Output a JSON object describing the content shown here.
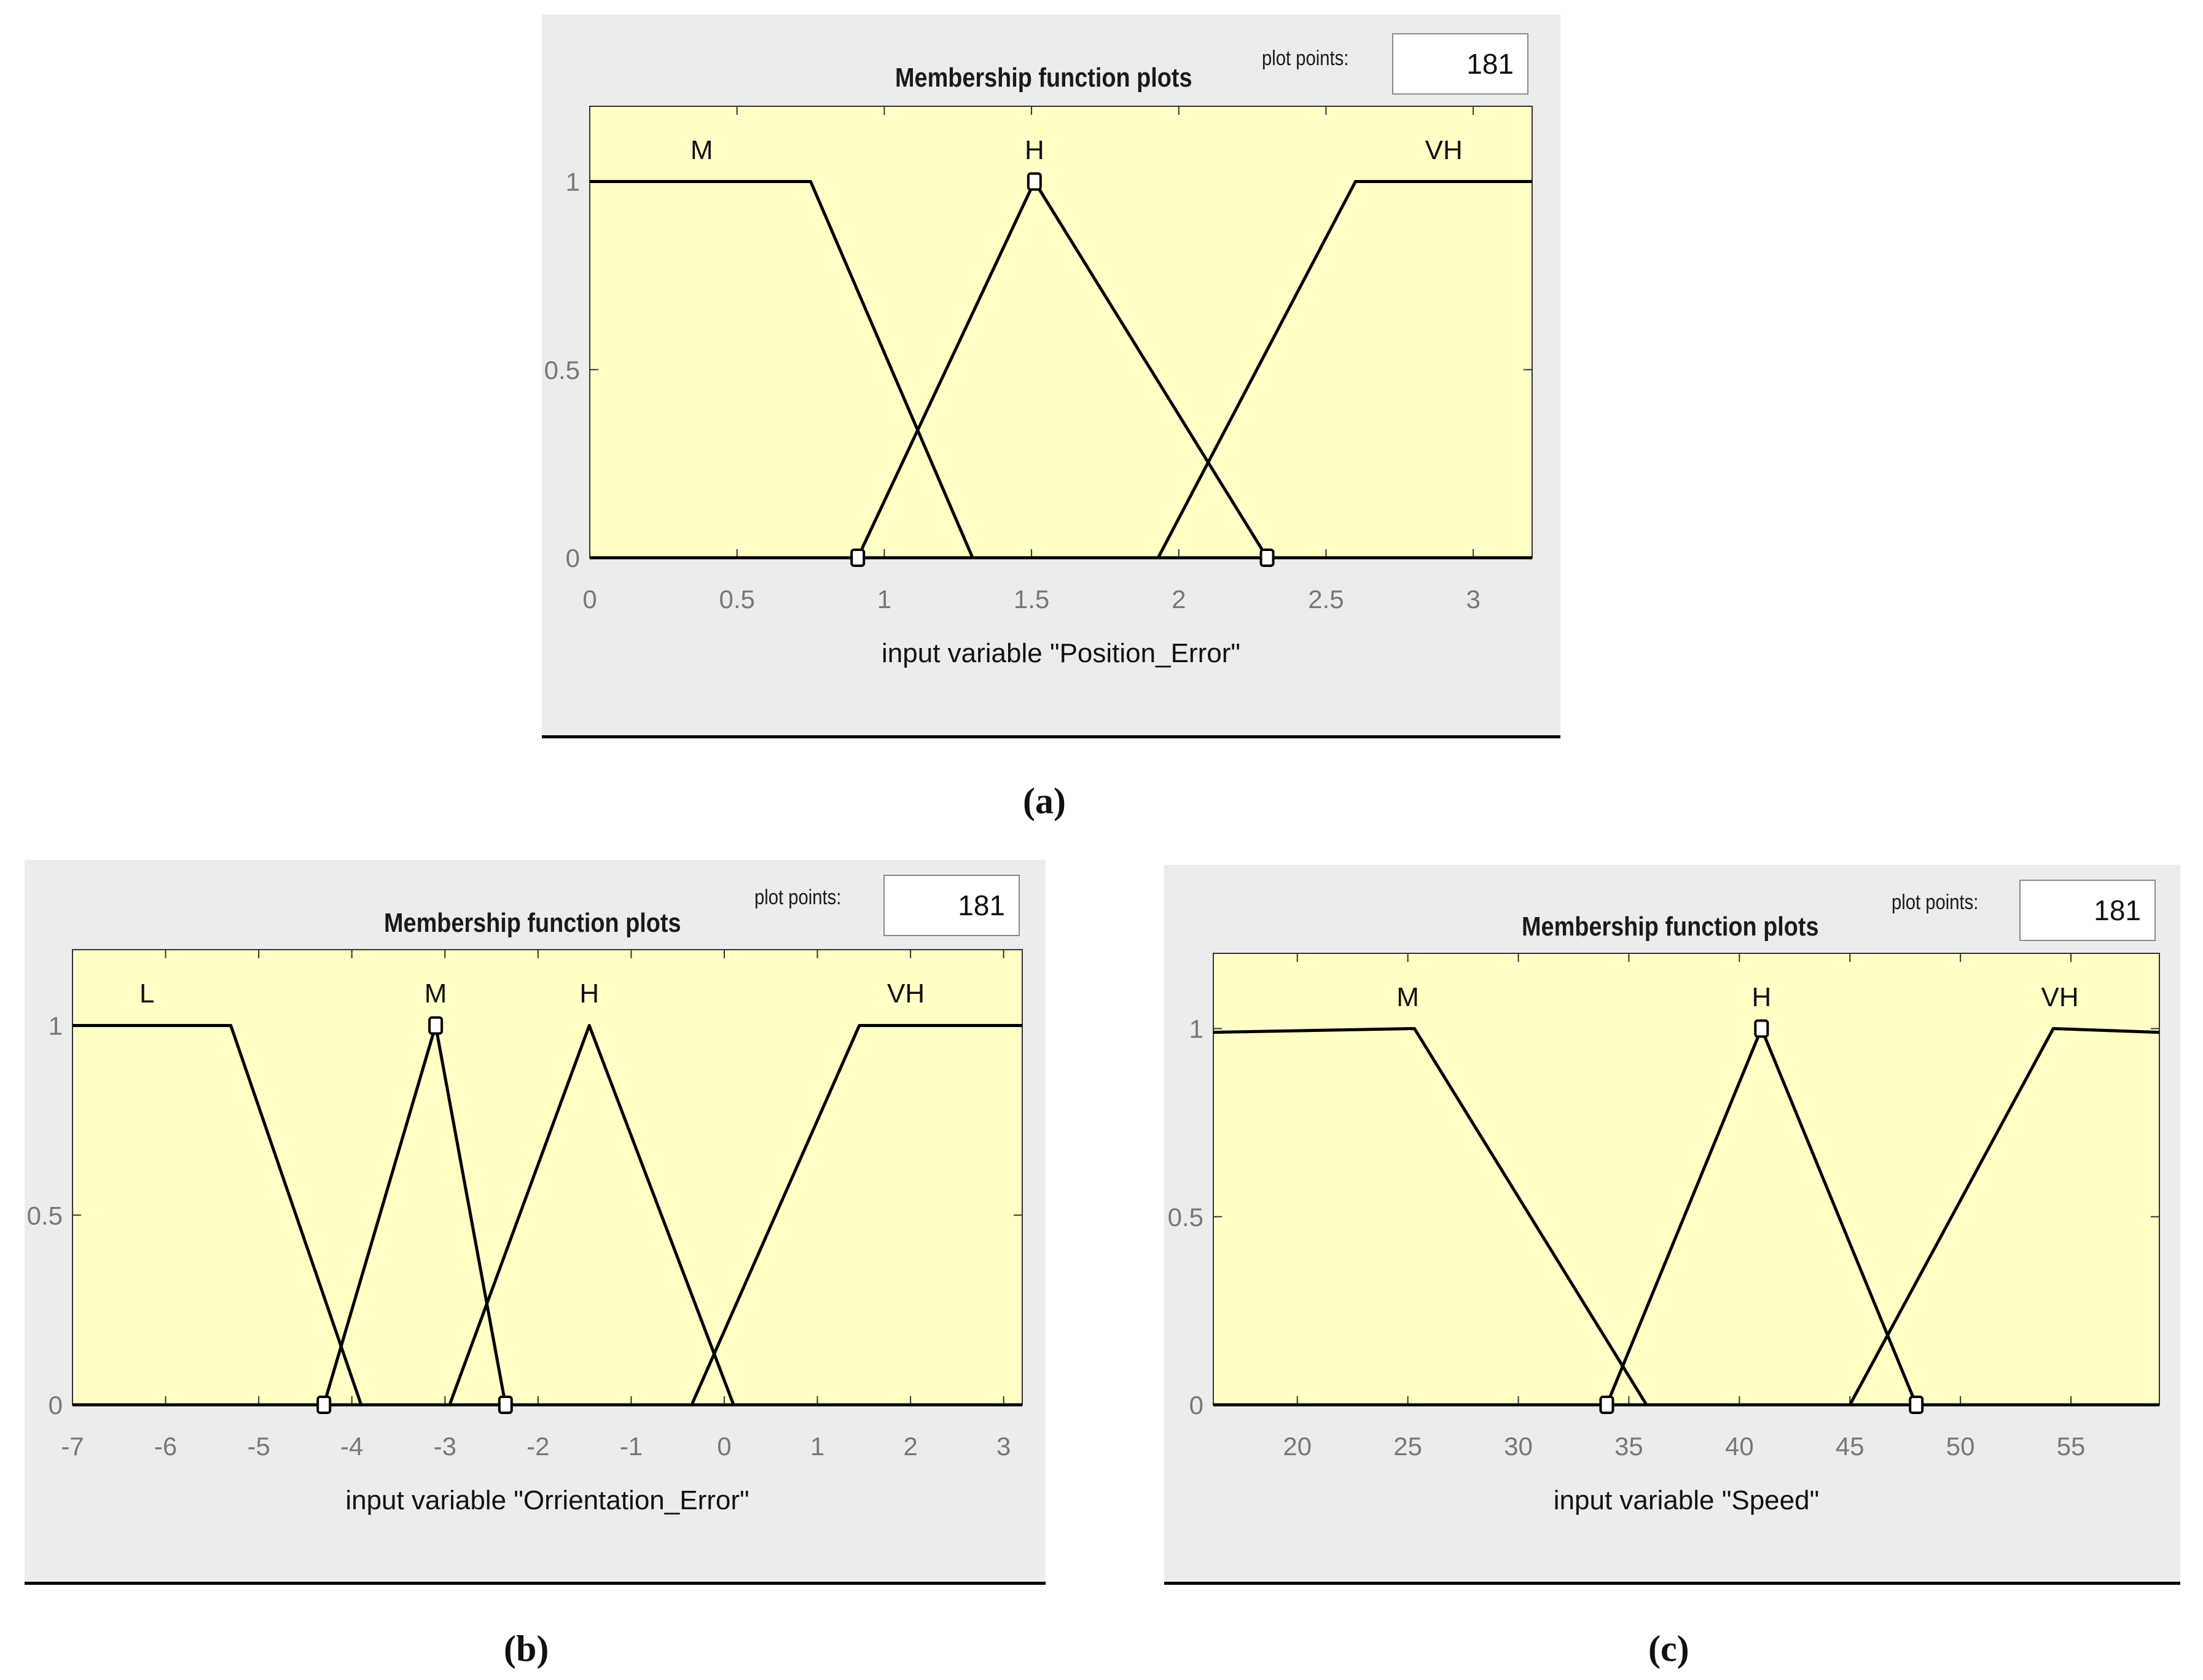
{
  "charts": [
    {
      "id": "a",
      "title": "Membership function plots",
      "plot_points_label": "plot points:",
      "plot_points_value": "181",
      "caption": "(a)"
    },
    {
      "id": "b",
      "title": "Membership function plots",
      "plot_points_label": "plot points:",
      "plot_points_value": "181",
      "caption": "(b)"
    },
    {
      "id": "c",
      "title": "Membership function plots",
      "plot_points_label": "plot points:",
      "plot_points_value": "181",
      "caption": "(c)"
    }
  ],
  "colors": {
    "plot_bg": "#ffffc6",
    "panel_bg": "#ececec",
    "line": "#000000",
    "tick_label": "#777777"
  },
  "chart_data": [
    {
      "type": "line",
      "xlabel": "input variable \"Position_Error\"",
      "xlim": [
        0,
        3.2
      ],
      "ylim": [
        0,
        1.2
      ],
      "xticks": [
        0,
        0.5,
        1,
        1.5,
        2,
        2.5,
        3
      ],
      "xtick_labels": [
        "0",
        "0.5",
        "1",
        "1.5",
        "2",
        "2.5",
        "3"
      ],
      "yticks": [
        0,
        0.5,
        1
      ],
      "ytick_labels": [
        "0",
        "0.5",
        "1"
      ],
      "series": [
        {
          "name": "M",
          "points": [
            [
              0,
              1
            ],
            [
              0.75,
              1
            ],
            [
              1.3,
              0
            ]
          ],
          "label_x": 0.38,
          "markers": []
        },
        {
          "name": "H",
          "points": [
            [
              0.91,
              0
            ],
            [
              1.51,
              1
            ],
            [
              2.3,
              0
            ]
          ],
          "label_x": 1.51,
          "markers": [
            [
              0.91,
              0
            ],
            [
              1.51,
              1
            ],
            [
              2.3,
              0
            ]
          ]
        },
        {
          "name": "VH",
          "points": [
            [
              1.93,
              0
            ],
            [
              2.6,
              1
            ],
            [
              3.2,
              1
            ]
          ],
          "label_x": 2.9,
          "markers": []
        }
      ]
    },
    {
      "type": "line",
      "xlabel": "input variable \"Orrientation_Error\"",
      "xlim": [
        -7,
        3.2
      ],
      "ylim": [
        0,
        1.2
      ],
      "xticks": [
        -7,
        -6,
        -5,
        -4,
        -3,
        -2,
        -1,
        0,
        1,
        2,
        3
      ],
      "xtick_labels": [
        "-7",
        "-6",
        "-5",
        "-4",
        "-3",
        "-2",
        "-1",
        "0",
        "1",
        "2",
        "3"
      ],
      "yticks": [
        0,
        0.5,
        1
      ],
      "ytick_labels": [
        "0",
        "0.5",
        "1"
      ],
      "series": [
        {
          "name": "L",
          "points": [
            [
              -7,
              1
            ],
            [
              -5.3,
              1
            ],
            [
              -3.9,
              0
            ]
          ],
          "label_x": -6.2,
          "markers": []
        },
        {
          "name": "M",
          "points": [
            [
              -4.3,
              0
            ],
            [
              -3.1,
              1
            ],
            [
              -2.35,
              0
            ]
          ],
          "label_x": -3.1,
          "markers": [
            [
              -4.3,
              0
            ],
            [
              -3.1,
              1
            ],
            [
              -2.35,
              0
            ]
          ]
        },
        {
          "name": "H",
          "points": [
            [
              -2.95,
              0
            ],
            [
              -1.45,
              1
            ],
            [
              0.1,
              0
            ]
          ],
          "label_x": -1.45,
          "markers": []
        },
        {
          "name": "VH",
          "points": [
            [
              -0.35,
              0
            ],
            [
              1.45,
              1
            ],
            [
              3.2,
              1
            ]
          ],
          "label_x": 1.95,
          "markers": []
        }
      ]
    },
    {
      "type": "line",
      "xlabel": "input variable \"Speed\"",
      "xlim": [
        16.2,
        59
      ],
      "ylim": [
        0,
        1.2
      ],
      "xticks": [
        20,
        25,
        30,
        35,
        40,
        45,
        50,
        55
      ],
      "xtick_labels": [
        "20",
        "25",
        "30",
        "35",
        "40",
        "45",
        "50",
        "55"
      ],
      "yticks": [
        0,
        0.5,
        1
      ],
      "ytick_labels": [
        "0",
        "0.5",
        "1"
      ],
      "series": [
        {
          "name": "M",
          "points": [
            [
              16.2,
              0.99
            ],
            [
              25.3,
              1
            ],
            [
              35.8,
              0
            ]
          ],
          "label_x": 25,
          "markers": []
        },
        {
          "name": "H",
          "points": [
            [
              34,
              0
            ],
            [
              41,
              1
            ],
            [
              48,
              0
            ]
          ],
          "label_x": 41,
          "markers": [
            [
              34,
              0
            ],
            [
              41,
              1
            ],
            [
              48,
              0
            ]
          ]
        },
        {
          "name": "VH",
          "points": [
            [
              45,
              0
            ],
            [
              54.2,
              1
            ],
            [
              59,
              0.99
            ]
          ],
          "label_x": 54.5,
          "markers": []
        }
      ]
    }
  ]
}
